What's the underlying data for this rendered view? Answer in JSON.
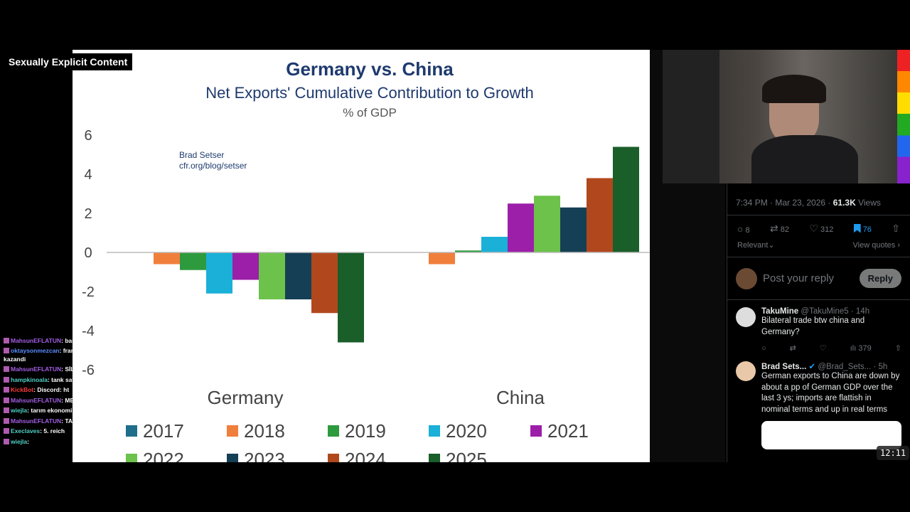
{
  "overlay": {
    "content_warning": "Sexually Explicit Content",
    "timer": "12:11"
  },
  "chat": [
    {
      "user": "MahsunEFLATUN",
      "color": "#a45ee5",
      "text": "başı"
    },
    {
      "user": "oktaysonmezcan",
      "color": "#5a8cff",
      "text": "fransizlari sok etti 55 bele... afrikali kazandi"
    },
    {
      "user": "MahsunEFLATUN",
      "color": "#a45ee5",
      "text": "SİLA"
    },
    {
      "user": "hampkinoala",
      "color": "#4fd1c5",
      "text": "tank sata"
    },
    {
      "user": "KickBot",
      "color": "#ff3b3b",
      "text": "Discord: ht"
    },
    {
      "user": "MahsunEFLATUN",
      "color": "#a45ee5",
      "text": "MER"
    },
    {
      "user": "wiejla",
      "color": "#4fd1c5",
      "text": "tarım ekonomis"
    },
    {
      "user": "MahsunEFLATUN",
      "color": "#a45ee5",
      "text": "TAN"
    },
    {
      "user": "Execlaves",
      "color": "#4fd1c5",
      "text": "5. reich"
    },
    {
      "user": "wiejla",
      "color": "#4fd1c5",
      "text": ""
    }
  ],
  "chart_data": {
    "type": "bar",
    "title": "Germany vs. China",
    "subtitle": "Net Exports' Cumulative Contribution to Growth",
    "ylabel": "% of GDP",
    "annotation": [
      "Brad Setser",
      "cfr.org/blog/setser"
    ],
    "ylim": [
      -6,
      6
    ],
    "yticks": [
      "6",
      "4",
      "2",
      "0",
      "-2",
      "-4",
      "-6"
    ],
    "categories": [
      "Germany",
      "China"
    ],
    "legend_position": "bottom",
    "series": [
      {
        "name": "2017",
        "color": "#1f6e8c",
        "values": [
          0,
          0
        ]
      },
      {
        "name": "2018",
        "color": "#f07f3c",
        "values": [
          -0.6,
          -0.6
        ]
      },
      {
        "name": "2019",
        "color": "#2e9a3e",
        "values": [
          -0.9,
          0.1
        ]
      },
      {
        "name": "2020",
        "color": "#1ab0d8",
        "values": [
          -2.1,
          0.8
        ]
      },
      {
        "name": "2021",
        "color": "#9b1fa8",
        "values": [
          -1.4,
          2.5
        ]
      },
      {
        "name": "2022",
        "color": "#6cc24a",
        "values": [
          -2.4,
          2.9
        ]
      },
      {
        "name": "2023",
        "color": "#143f55",
        "values": [
          -2.4,
          2.3
        ]
      },
      {
        "name": "2024",
        "color": "#b1481d",
        "values": [
          -3.1,
          3.8
        ]
      },
      {
        "name": "2025",
        "color": "#1a5e2a",
        "values": [
          -4.6,
          5.4
        ]
      }
    ]
  },
  "tweet": {
    "time": "7:34 PM · Mar 23, 2026 · ",
    "views": "61.3K",
    "views_label": " Views",
    "replies": "8",
    "reposts": "82",
    "likes": "312",
    "bookmarks": "76",
    "sort": "Relevant",
    "view_quotes": "View quotes",
    "reply_placeholder": "Post your reply",
    "reply_button": "Reply",
    "replies_list": [
      {
        "name": "TakuMine",
        "handle": "@TakuMine5 · 14h",
        "text": "Bilateral trade btw china and Germany?",
        "views": "379"
      },
      {
        "name": "Brad Sets...",
        "handle": "@Brad_Sets... · 5h",
        "text": "German exports to China are down by about a pp of German GDP over the last 3 ys; imports are flattish in nominal terms and up in real terms"
      }
    ]
  }
}
